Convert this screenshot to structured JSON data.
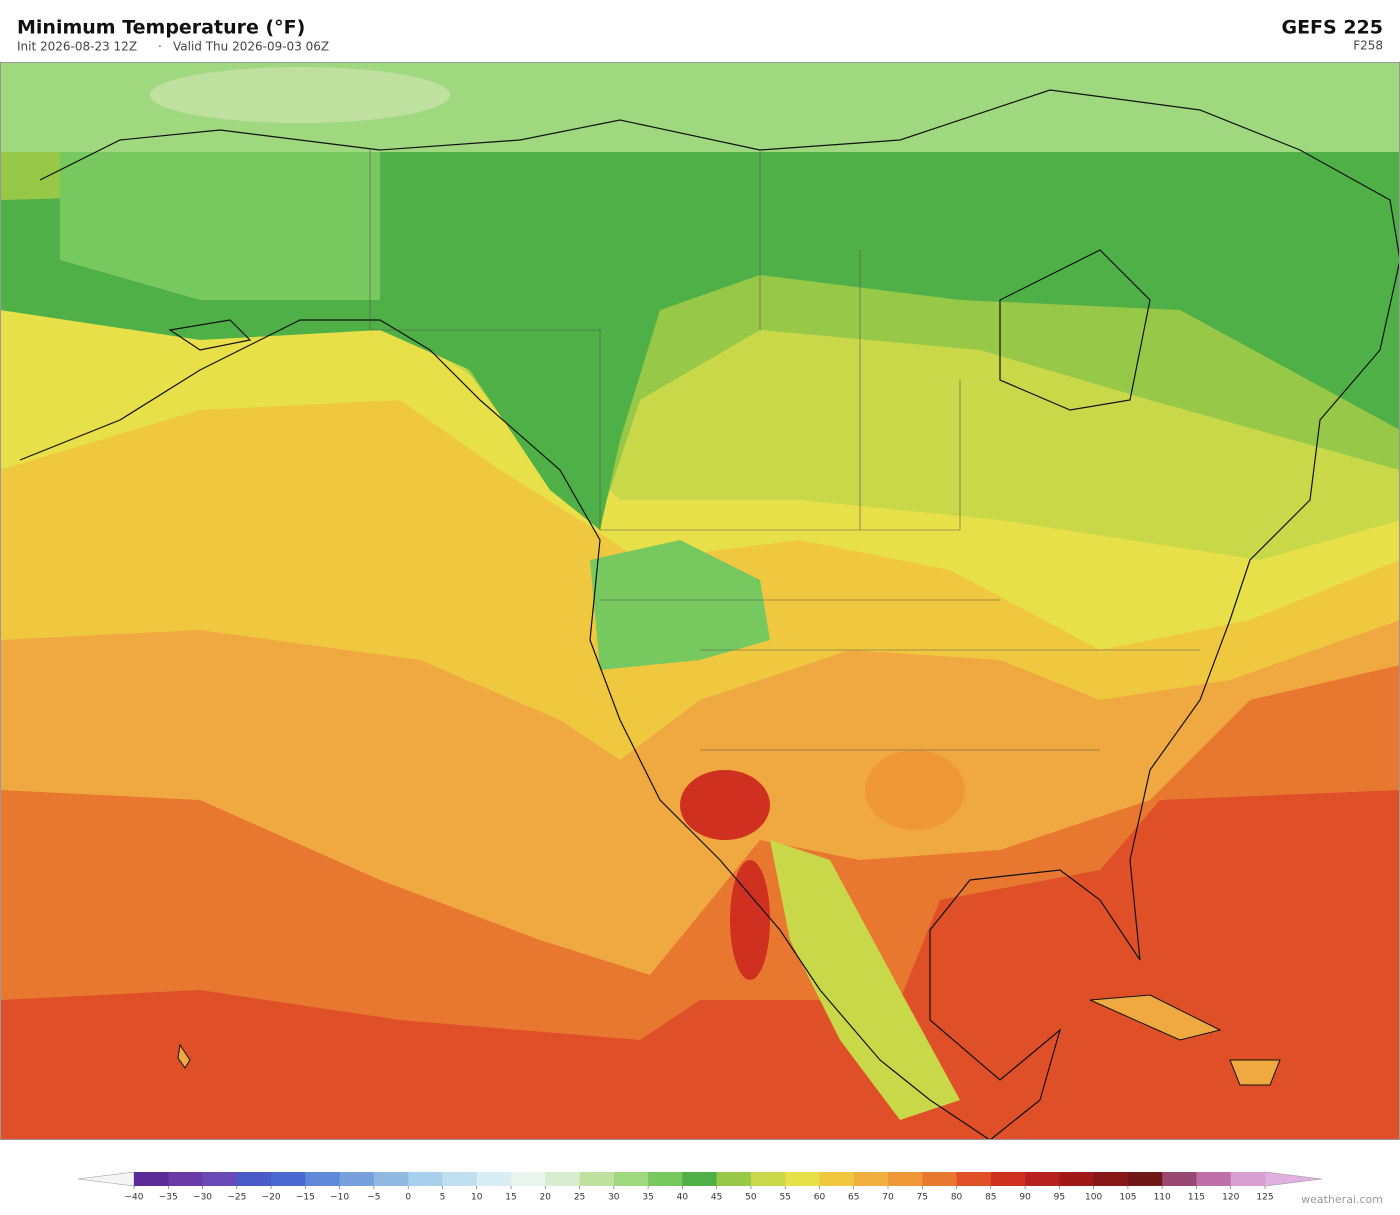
{
  "header": {
    "title": "Minimum Temperature  (°F)",
    "init": "Init 2026-08-23 12Z",
    "separator": "·",
    "valid": "Valid Thu 2026-09-03 06Z",
    "model": "GEFS  225",
    "forecast_hour": "F258"
  },
  "colorbar": {
    "under_color": "#f4f4f4",
    "over_color": "#e0b0e0",
    "ticks": [
      {
        "value": -40,
        "label": "−40"
      },
      {
        "value": -35,
        "label": "−35"
      },
      {
        "value": -30,
        "label": "−30"
      },
      {
        "value": -25,
        "label": "−25"
      },
      {
        "value": -20,
        "label": "−20"
      },
      {
        "value": -15,
        "label": "−15"
      },
      {
        "value": -10,
        "label": "−10"
      },
      {
        "value": -5,
        "label": "−5"
      },
      0,
      5,
      10,
      15,
      20,
      25,
      30,
      35,
      40,
      45,
      50,
      55,
      60,
      65,
      70,
      75,
      80,
      85,
      90,
      95,
      100,
      105,
      110,
      115,
      120,
      125
    ],
    "colors": [
      "#5a2a96",
      "#6a3aa6",
      "#6a4ab6",
      "#4a5ac6",
      "#4a68d0",
      "#6088d8",
      "#78a0dc",
      "#90b8e0",
      "#a8d0ec",
      "#c0e0f0",
      "#d8eef4",
      "#e8f4ec",
      "#d8ecd0",
      "#c0e0a0",
      "#a0d880",
      "#78c860",
      "#50b048",
      "#98c848",
      "#c8d848",
      "#e8e048",
      "#f0c840",
      "#f0b040",
      "#f09838",
      "#e87830",
      "#e05028",
      "#d03020",
      "#b82020",
      "#a01818",
      "#881818",
      "#701818",
      "#984870",
      "#c070a8",
      "#d8a0d0"
    ]
  },
  "footer": {
    "watermark": "weatherai.com"
  }
}
